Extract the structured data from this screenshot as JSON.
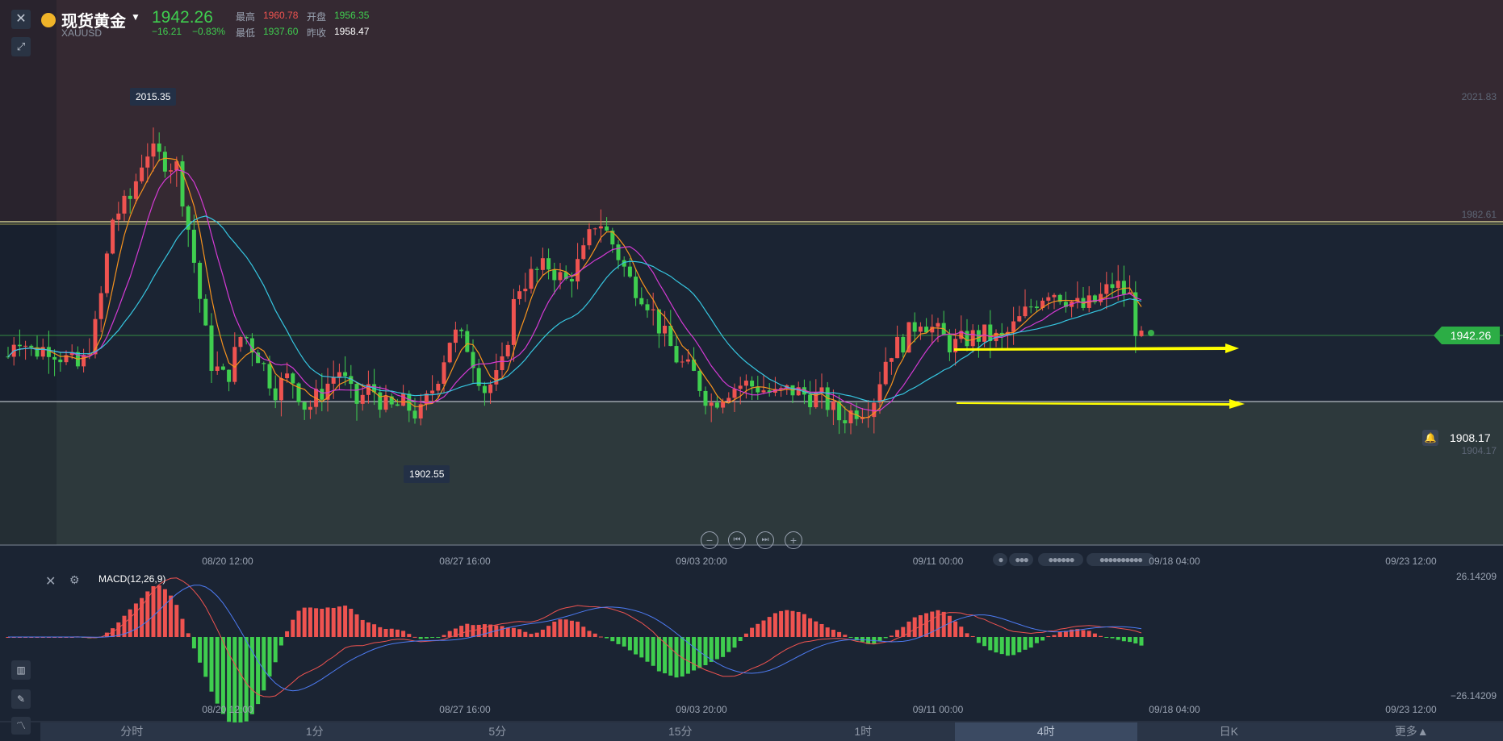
{
  "header": {
    "symbol_name": "现货黄金",
    "symbol_code": "XAUUSD",
    "last_price": "1942.26",
    "change": "−16.21",
    "change_pct": "−0.83%",
    "quotes": [
      {
        "label": "最高",
        "value": "1960.78",
        "color": "red"
      },
      {
        "label": "开盘",
        "value": "1956.35",
        "color": "green"
      },
      {
        "label": "最低",
        "value": "1937.60",
        "color": "green"
      },
      {
        "label": "昨收",
        "value": "1958.47",
        "color": "white"
      }
    ]
  },
  "main_chart": {
    "y_labels": [
      "2021.83",
      "1982.61",
      "1904.17"
    ],
    "price_tag": "1942.26",
    "alarm_value": "1908.17",
    "high_annotation": "2015.35",
    "low_annotation": "1902.55",
    "x_labels": [
      "08/20 12:00",
      "08/27 16:00",
      "09/03 20:00",
      "09/11 00:00",
      "09/18 04:00",
      "09/23 12:00"
    ],
    "resistance_level": 1982.61,
    "support_level": 1904.17,
    "current_level": 1942.26,
    "colors": {
      "up": "#ef5350",
      "down": "#3fce4f",
      "ma_fast": "#f7931e",
      "ma_mid": "#d43ad4",
      "ma_slow": "#36c6e0",
      "arrow": "#ffff00"
    }
  },
  "controls": {
    "zoom_out": "−",
    "prev": "⏮",
    "next": "⏭",
    "zoom_in": "+"
  },
  "macd": {
    "label": "MACD(12,26,9)",
    "y_top": "26.14209",
    "y_bottom": "−26.14209",
    "x_labels": [
      "08/20 12:00",
      "08/27 16:00",
      "09/03 20:00",
      "09/11 00:00",
      "09/18 04:00",
      "09/23 12:00"
    ]
  },
  "period_tabs": [
    "分时",
    "1分",
    "5分",
    "15分",
    "1时",
    "4时",
    "日K",
    "更多▲"
  ],
  "active_tab": "4时",
  "icons": [
    "close-icon",
    "gear-icon",
    "expand-icon",
    "candle-type-icon",
    "draw-line-icon",
    "indicator-icon",
    "bell-icon",
    "gold-coin-icon"
  ]
}
